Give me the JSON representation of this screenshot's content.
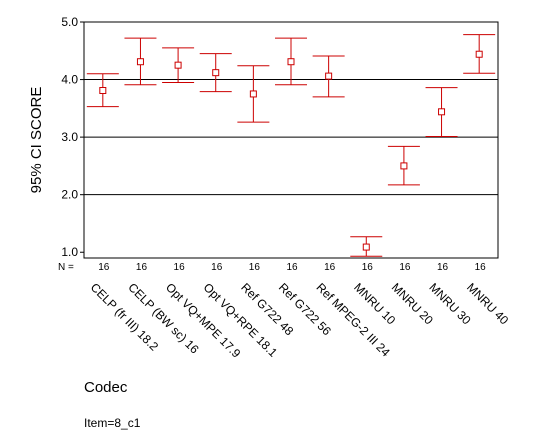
{
  "chart_data": {
    "type": "errorbar",
    "ylabel": "95% CI SCORE",
    "xlabel": "Codec",
    "footer": "Item=8_c1",
    "n_label": "N =",
    "ylim": [
      0.9,
      5.0
    ],
    "yticks": [
      1.0,
      2.0,
      3.0,
      4.0,
      5.0
    ],
    "ytick_labels": [
      "1.0",
      "2.0",
      "3.0",
      "4.0",
      "5.0"
    ],
    "gridlines": [
      2.0,
      3.0,
      4.0
    ],
    "categories": [
      "CELP (fr III) 18.2",
      "CELP (BW sc) 16",
      "Opt VQ+MPE 17.9",
      "Opt VQ+RPE 18.1",
      "Ref G722 48",
      "Ref G722 56",
      "Ref MPEG-2 III 24",
      "MNRU 10",
      "MNRU 20",
      "MNRU 30",
      "MNRU 40"
    ],
    "n": [
      "16",
      "16",
      "16",
      "16",
      "16",
      "16",
      "16",
      "16",
      "16",
      "16",
      "16"
    ],
    "means": [
      3.81,
      4.31,
      4.25,
      4.12,
      3.75,
      4.31,
      4.06,
      1.09,
      2.5,
      3.44,
      4.44
    ],
    "lower": [
      3.53,
      3.91,
      3.95,
      3.79,
      3.26,
      3.91,
      3.7,
      0.93,
      2.17,
      3.01,
      4.11
    ],
    "upper": [
      4.1,
      4.72,
      4.55,
      4.45,
      4.24,
      4.72,
      4.41,
      1.27,
      2.84,
      3.86,
      4.78
    ],
    "series_color": "#cc0000",
    "grid": true
  }
}
